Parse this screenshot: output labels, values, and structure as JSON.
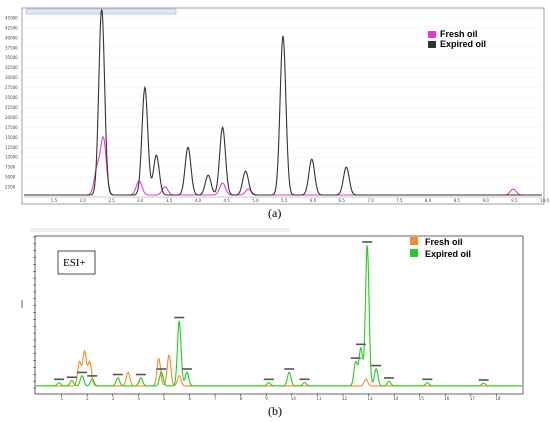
{
  "colors": {
    "fresh_a": "#e040c8",
    "expired_a": "#333333",
    "fresh_b": "#f28c28",
    "expired_b": "#22cc22"
  },
  "panel_a": {
    "caption": "(a)",
    "legend": {
      "fresh": "Fresh oil",
      "expired": "Expired oil"
    }
  },
  "panel_b": {
    "caption": "(b)",
    "badge": "ESI+",
    "legend": {
      "fresh": "Fresh oil",
      "expired": "Expired oil"
    }
  },
  "chart_data": [
    {
      "type": "line",
      "xlim": [
        1.0,
        10.0
      ],
      "ylim": [
        0,
        47000
      ],
      "x_ticks": [
        "1.5",
        "2.0",
        "2.5",
        "3.0",
        "3.5",
        "4.0",
        "4.5",
        "5.0",
        "5.5",
        "6.0",
        "6.5",
        "7.0",
        "7.5",
        "8.0",
        "8.5",
        "9.0",
        "9.5",
        "10.0"
      ],
      "y_ticks": [
        "2500",
        "5000",
        "7500",
        "10000",
        "12500",
        "15000",
        "17500",
        "20000",
        "22500",
        "25000",
        "27500",
        "30000",
        "32500",
        "35000",
        "37500",
        "40000",
        "42500",
        "45000"
      ],
      "series": [
        {
          "name": "Fresh oil",
          "peaks": [
            [
              2.27,
              6500
            ],
            [
              2.38,
              14000
            ],
            [
              3.0,
              3500
            ],
            [
              3.45,
              2000
            ],
            [
              4.45,
              3000
            ],
            [
              4.9,
              1500
            ],
            [
              9.5,
              1500
            ]
          ],
          "baseline": 500
        },
        {
          "name": "Expired oil",
          "peaks": [
            [
              2.35,
              47000
            ],
            [
              3.1,
              27000
            ],
            [
              3.3,
              10000
            ],
            [
              3.85,
              12000
            ],
            [
              4.2,
              5000
            ],
            [
              4.45,
              17000
            ],
            [
              4.85,
              6000
            ],
            [
              5.5,
              40000
            ],
            [
              6.0,
              9000
            ],
            [
              6.6,
              7000
            ]
          ],
          "baseline": 500
        }
      ]
    },
    {
      "type": "line",
      "xlim": [
        0,
        19
      ],
      "ylim": [
        0,
        2.2
      ],
      "x_ticks": [
        "1",
        "2",
        "3",
        "4",
        "5",
        "6",
        "7",
        "8",
        "9",
        "10",
        "11",
        "12",
        "13",
        "14",
        "15",
        "16",
        "17",
        "18"
      ],
      "series": [
        {
          "name": "Fresh oil",
          "peaks": [
            [
              1.7,
              0.35
            ],
            [
              1.9,
              0.5
            ],
            [
              2.1,
              0.35
            ],
            [
              3.6,
              0.2
            ],
            [
              4.8,
              0.4
            ],
            [
              5.2,
              0.45
            ],
            [
              5.6,
              0.15
            ],
            [
              12.9,
              0.1
            ]
          ],
          "baseline": 0.03
        },
        {
          "name": "Expired oil",
          "peaks": [
            [
              0.9,
              0.05
            ],
            [
              1.4,
              0.08
            ],
            [
              1.8,
              0.15
            ],
            [
              2.2,
              0.1
            ],
            [
              3.2,
              0.12
            ],
            [
              4.1,
              0.12
            ],
            [
              4.9,
              0.2
            ],
            [
              5.6,
              0.95
            ],
            [
              5.9,
              0.2
            ],
            [
              9.1,
              0.05
            ],
            [
              9.9,
              0.2
            ],
            [
              10.5,
              0.05
            ],
            [
              12.5,
              0.35
            ],
            [
              12.7,
              0.55
            ],
            [
              12.95,
              2.05
            ],
            [
              13.3,
              0.25
            ],
            [
              13.8,
              0.07
            ],
            [
              15.3,
              0.05
            ],
            [
              17.5,
              0.04
            ]
          ],
          "baseline": 0.03
        }
      ]
    }
  ]
}
